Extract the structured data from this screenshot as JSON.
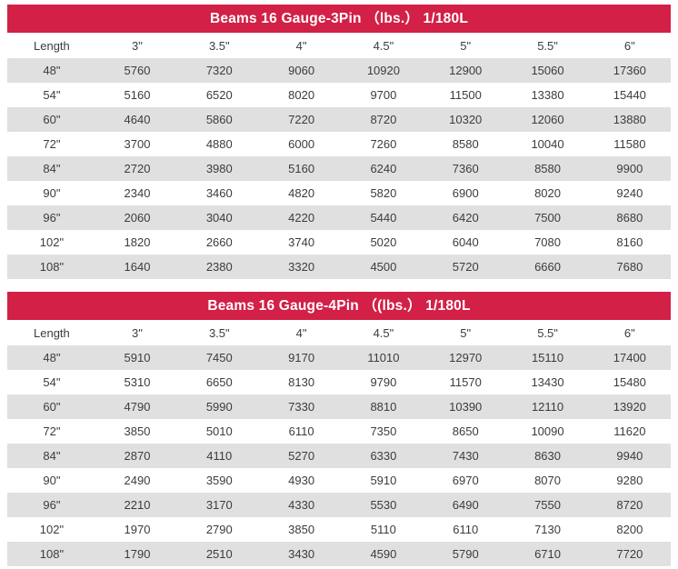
{
  "colors": {
    "header_red": "#d22046",
    "stripe_gray": "#e0e0e0",
    "text_dark": "#3c3c3c"
  },
  "tables": [
    {
      "title": "Beams 16 Gauge-3Pin （lbs.） 1/180L",
      "columns": [
        "Length",
        "3\"",
        "3.5\"",
        "4\"",
        "4.5\"",
        "5\"",
        "5.5\"",
        "6\""
      ],
      "rows": [
        [
          "48\"",
          "5760",
          "7320",
          "9060",
          "10920",
          "12900",
          "15060",
          "17360"
        ],
        [
          "54\"",
          "5160",
          "6520",
          "8020",
          "9700",
          "11500",
          "13380",
          "15440"
        ],
        [
          "60\"",
          "4640",
          "5860",
          "7220",
          "8720",
          "10320",
          "12060",
          "13880"
        ],
        [
          "72\"",
          "3700",
          "4880",
          "6000",
          "7260",
          "8580",
          "10040",
          "11580"
        ],
        [
          "84\"",
          "2720",
          "3980",
          "5160",
          "6240",
          "7360",
          "8580",
          "9900"
        ],
        [
          "90\"",
          "2340",
          "3460",
          "4820",
          "5820",
          "6900",
          "8020",
          "9240"
        ],
        [
          "96\"",
          "2060",
          "3040",
          "4220",
          "5440",
          "6420",
          "7500",
          "8680"
        ],
        [
          "102\"",
          "1820",
          "2660",
          "3740",
          "5020",
          "6040",
          "7080",
          "8160"
        ],
        [
          "108\"",
          "1640",
          "2380",
          "3320",
          "4500",
          "5720",
          "6660",
          "7680"
        ]
      ]
    },
    {
      "title": "Beams 16 Gauge-4Pin （(lbs.） 1/180L",
      "columns": [
        "Length",
        "3\"",
        "3.5\"",
        "4\"",
        "4.5\"",
        "5\"",
        "5.5\"",
        "6\""
      ],
      "rows": [
        [
          "48\"",
          "5910",
          "7450",
          "9170",
          "11010",
          "12970",
          "15110",
          "17400"
        ],
        [
          "54\"",
          "5310",
          "6650",
          "8130",
          "9790",
          "11570",
          "13430",
          "15480"
        ],
        [
          "60\"",
          "4790",
          "5990",
          "7330",
          "8810",
          "10390",
          "12110",
          "13920"
        ],
        [
          "72\"",
          "3850",
          "5010",
          "6110",
          "7350",
          "8650",
          "10090",
          "11620"
        ],
        [
          "84\"",
          "2870",
          "4110",
          "5270",
          "6330",
          "7430",
          "8630",
          "9940"
        ],
        [
          "90\"",
          "2490",
          "3590",
          "4930",
          "5910",
          "6970",
          "8070",
          "9280"
        ],
        [
          "96\"",
          "2210",
          "3170",
          "4330",
          "5530",
          "6490",
          "7550",
          "8720"
        ],
        [
          "102\"",
          "1970",
          "2790",
          "3850",
          "5110",
          "6110",
          "7130",
          "8200"
        ],
        [
          "108\"",
          "1790",
          "2510",
          "3430",
          "4590",
          "5790",
          "6710",
          "7720"
        ]
      ]
    }
  ],
  "chart_data": [
    {
      "type": "table",
      "title": "Beams 16 Gauge-3Pin （lbs.） 1/180L",
      "columns": [
        "Length",
        "3\"",
        "3.5\"",
        "4\"",
        "4.5\"",
        "5\"",
        "5.5\"",
        "6\""
      ],
      "rows": [
        [
          "48\"",
          5760,
          7320,
          9060,
          10920,
          12900,
          15060,
          17360
        ],
        [
          "54\"",
          5160,
          6520,
          8020,
          9700,
          11500,
          13380,
          15440
        ],
        [
          "60\"",
          4640,
          5860,
          7220,
          8720,
          10320,
          12060,
          13880
        ],
        [
          "72\"",
          3700,
          4880,
          6000,
          7260,
          8580,
          10040,
          11580
        ],
        [
          "84\"",
          2720,
          3980,
          5160,
          6240,
          7360,
          8580,
          9900
        ],
        [
          "90\"",
          2340,
          3460,
          4820,
          5820,
          6900,
          8020,
          9240
        ],
        [
          "96\"",
          2060,
          3040,
          4220,
          5440,
          6420,
          7500,
          8680
        ],
        [
          "102\"",
          1820,
          2660,
          3740,
          5020,
          6040,
          7080,
          8160
        ],
        [
          "108\"",
          1640,
          2380,
          3320,
          4500,
          5720,
          6660,
          7680
        ]
      ]
    },
    {
      "type": "table",
      "title": "Beams 16 Gauge-4Pin （(lbs.） 1/180L",
      "columns": [
        "Length",
        "3\"",
        "3.5\"",
        "4\"",
        "4.5\"",
        "5\"",
        "5.5\"",
        "6\""
      ],
      "rows": [
        [
          "48\"",
          5910,
          7450,
          9170,
          11010,
          12970,
          15110,
          17400
        ],
        [
          "54\"",
          5310,
          6650,
          8130,
          9790,
          11570,
          13430,
          15480
        ],
        [
          "60\"",
          4790,
          5990,
          7330,
          8810,
          10390,
          12110,
          13920
        ],
        [
          "72\"",
          3850,
          5010,
          6110,
          7350,
          8650,
          10090,
          11620
        ],
        [
          "84\"",
          2870,
          4110,
          5270,
          6330,
          7430,
          8630,
          9940
        ],
        [
          "90\"",
          2490,
          3590,
          4930,
          5910,
          6970,
          8070,
          9280
        ],
        [
          "96\"",
          2210,
          3170,
          4330,
          5530,
          6490,
          7550,
          8720
        ],
        [
          "102\"",
          1970,
          2790,
          3850,
          5110,
          6110,
          7130,
          8200
        ],
        [
          "108\"",
          1790,
          2510,
          3430,
          4590,
          5790,
          6710,
          7720
        ]
      ]
    }
  ]
}
